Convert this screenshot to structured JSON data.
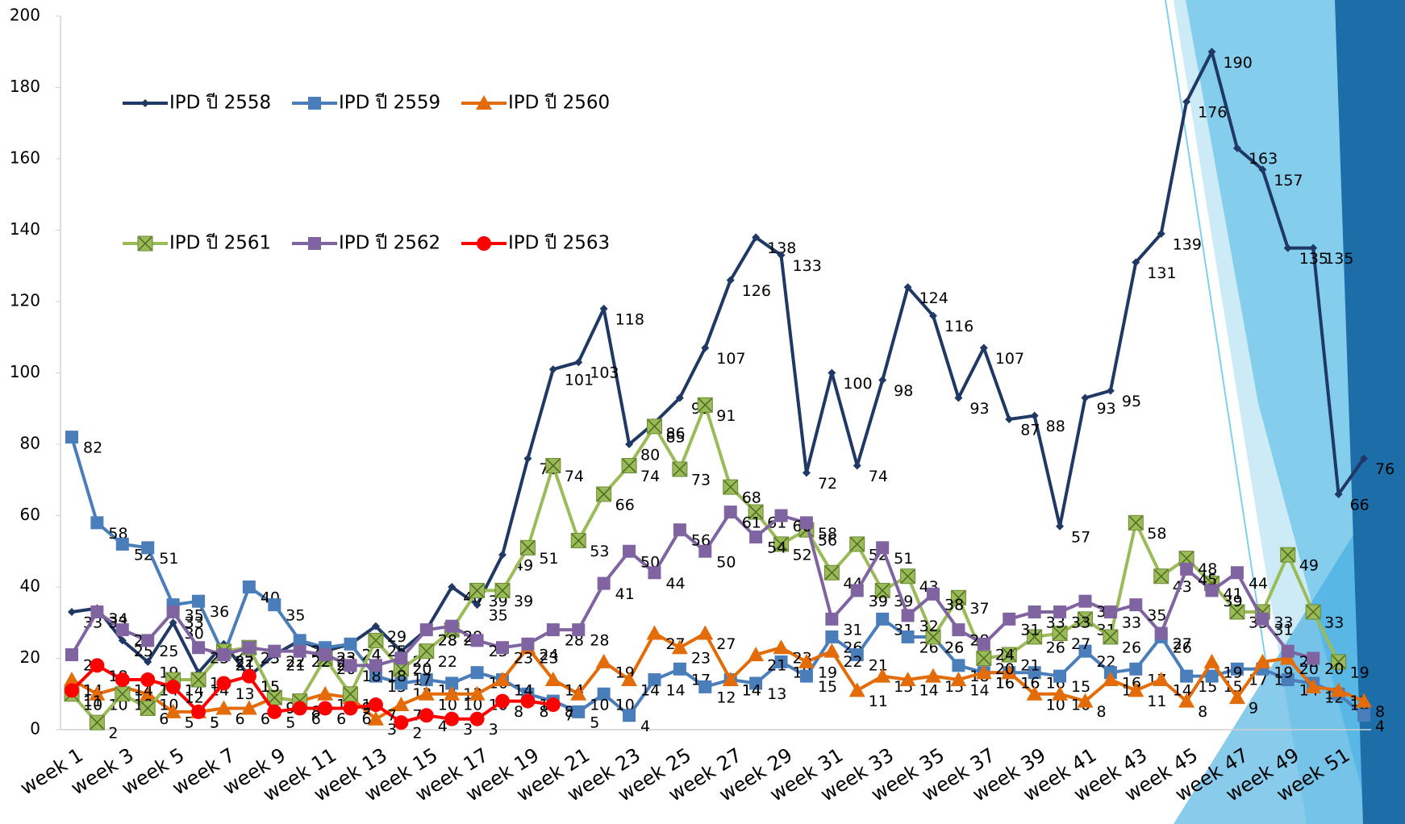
{
  "chart_data": {
    "type": "line",
    "categories": [
      "week 1",
      null,
      "week 3",
      null,
      "week 5",
      null,
      "week 7",
      null,
      "week 9",
      null,
      "week 11",
      null,
      "week 13",
      null,
      "week 15",
      null,
      "week 17",
      null,
      "week 19",
      null,
      "week 21",
      null,
      "week 23",
      null,
      "week 25",
      null,
      "week 27",
      null,
      "week 29",
      null,
      "week 31",
      null,
      "week 33",
      null,
      "week 35",
      null,
      "week 37",
      null,
      "week 39",
      null,
      "week 41",
      null,
      "week 43",
      null,
      "week 45",
      null,
      "week 47",
      null,
      "week 49",
      null,
      "week 51",
      null
    ],
    "ylim": [
      0,
      200
    ],
    "yticks": [
      0,
      20,
      40,
      60,
      80,
      100,
      120,
      140,
      160,
      180,
      200
    ],
    "legend": "upper-left",
    "series": [
      {
        "name": "IPD ปี 2558",
        "color": "#1f3864",
        "marker": "diamond",
        "values": [
          33,
          34,
          25,
          19,
          30,
          16,
          24,
          15,
          21,
          25,
          22,
          24,
          29,
          22,
          28,
          40,
          35,
          49,
          76,
          101,
          103,
          118,
          80,
          86,
          93,
          107,
          126,
          138,
          133,
          72,
          100,
          74,
          98,
          124,
          116,
          93,
          107,
          87,
          88,
          57,
          93,
          95,
          131,
          139,
          176,
          190,
          163,
          157,
          135,
          135,
          66,
          76
        ]
      },
      {
        "name": "IPD ปี 2559",
        "color": "#4a7ebb",
        "marker": "square",
        "values": [
          82,
          58,
          52,
          51,
          35,
          36,
          21,
          40,
          35,
          25,
          23,
          24,
          15,
          13,
          14,
          13,
          16,
          14,
          10,
          8,
          5,
          10,
          4,
          14,
          17,
          12,
          14,
          13,
          19,
          15,
          26,
          21,
          31,
          26,
          26,
          18,
          16,
          16,
          16,
          15,
          22,
          16,
          17,
          26,
          15,
          15,
          17,
          17,
          14,
          13,
          10,
          4
        ]
      },
      {
        "name": "IPD ปี 2560",
        "color": "#e36c09",
        "marker": "triangle",
        "values": [
          14,
          10,
          12,
          10,
          5,
          5,
          6,
          6,
          9,
          8,
          10,
          9,
          3,
          7,
          10,
          10,
          10,
          14,
          23,
          14,
          10,
          19,
          14,
          27,
          23,
          27,
          14,
          21,
          23,
          19,
          22,
          11,
          15,
          14,
          15,
          14,
          16,
          16,
          10,
          10,
          8,
          14,
          11,
          14,
          8,
          19,
          9,
          19,
          20,
          12,
          11,
          8
        ]
      },
      {
        "name": "IPD ปี 2561",
        "color": "#9bbb59",
        "marker": "xbox",
        "values": [
          10,
          2,
          10,
          6,
          14,
          14,
          22,
          23,
          9,
          8,
          20,
          10,
          25,
          17,
          22,
          28,
          39,
          39,
          51,
          74,
          53,
          66,
          74,
          85,
          73,
          91,
          68,
          61,
          52,
          56,
          44,
          52,
          39,
          43,
          26,
          37,
          20,
          21,
          26,
          27,
          31,
          26,
          58,
          43,
          48,
          41,
          33,
          33,
          49,
          33,
          19,
          null
        ]
      },
      {
        "name": "IPD ปี 2562",
        "color": "#8064a2",
        "marker": "square",
        "values": [
          21,
          33,
          28,
          25,
          33,
          23,
          21,
          23,
          22,
          22,
          21,
          18,
          18,
          20,
          28,
          29,
          25,
          23,
          24,
          28,
          28,
          41,
          50,
          44,
          56,
          50,
          61,
          54,
          60,
          58,
          31,
          39,
          51,
          32,
          38,
          28,
          24,
          31,
          33,
          33,
          36,
          33,
          35,
          27,
          45,
          39,
          44,
          31,
          22,
          20,
          null,
          null
        ]
      },
      {
        "name": "IPD ปี 2563",
        "color": "#ff0000",
        "marker": "circle",
        "values": [
          11,
          18,
          14,
          14,
          12,
          5,
          13,
          15,
          5,
          6,
          6,
          6,
          7,
          2,
          4,
          3,
          3,
          8,
          8,
          7,
          null,
          null,
          null,
          null,
          null,
          null,
          null,
          null,
          null,
          null,
          null,
          null,
          null,
          null,
          null,
          null,
          null,
          null,
          null,
          null,
          null,
          null,
          null,
          null,
          null,
          null,
          null,
          null,
          null,
          null,
          null,
          null
        ]
      }
    ]
  }
}
